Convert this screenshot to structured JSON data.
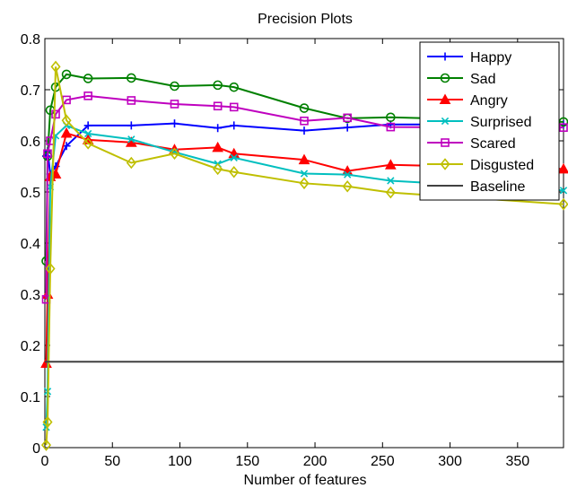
{
  "chart_data": {
    "type": "line",
    "title": "Precision Plots",
    "xlabel": "Number of features",
    "ylabel": "",
    "xlim": [
      0,
      384
    ],
    "ylim": [
      0,
      0.8
    ],
    "xticks": [
      0,
      50,
      100,
      150,
      200,
      250,
      300,
      350
    ],
    "yticks": [
      0,
      0.1,
      0.2,
      0.3,
      0.4,
      0.5,
      0.6,
      0.7,
      0.8
    ],
    "ytick_labels": [
      "0",
      "0.1",
      "0.2",
      "0.3",
      "0.4",
      "0.5",
      "0.6",
      "0.7",
      "0.8"
    ],
    "grid": false,
    "legend_position": "top-right",
    "x": [
      1,
      2,
      4,
      8,
      16,
      32,
      64,
      96,
      128,
      140,
      192,
      224,
      256,
      384
    ],
    "series": [
      {
        "name": "Happy",
        "color": "#0000ff",
        "marker": "plus",
        "values": [
          0.57,
          0.58,
          0.535,
          0.55,
          0.59,
          0.63,
          0.63,
          0.634,
          0.625,
          0.63,
          0.62,
          0.626,
          0.632,
          0.632
        ]
      },
      {
        "name": "Sad",
        "color": "#008000",
        "marker": "circle",
        "values": [
          0.365,
          0.57,
          0.66,
          0.705,
          0.73,
          0.722,
          0.723,
          0.707,
          0.709,
          0.705,
          0.664,
          0.644,
          0.646,
          0.637
        ]
      },
      {
        "name": "Angry",
        "color": "#ff0000",
        "marker": "triangle",
        "values": [
          0.165,
          0.3,
          0.53,
          0.535,
          0.615,
          0.602,
          0.597,
          0.583,
          0.587,
          0.575,
          0.563,
          0.541,
          0.553,
          0.545
        ]
      },
      {
        "name": "Surprised",
        "color": "#00bfbf",
        "marker": "x",
        "values": [
          0.04,
          0.11,
          0.51,
          0.61,
          0.63,
          0.614,
          0.603,
          0.578,
          0.555,
          0.567,
          0.536,
          0.534,
          0.522,
          0.503
        ]
      },
      {
        "name": "Scared",
        "color": "#bf00bf",
        "marker": "square",
        "values": [
          0.29,
          0.575,
          0.6,
          0.652,
          0.68,
          0.688,
          0.679,
          0.672,
          0.668,
          0.666,
          0.639,
          0.645,
          0.627,
          0.626
        ]
      },
      {
        "name": "Disgusted",
        "color": "#bfbf00",
        "marker": "diamond",
        "values": [
          0.005,
          0.05,
          0.35,
          0.745,
          0.64,
          0.595,
          0.557,
          0.575,
          0.545,
          0.539,
          0.517,
          0.511,
          0.499,
          0.476
        ]
      },
      {
        "name": "Baseline",
        "color": "#404040",
        "marker": "none",
        "constant": 0.168
      }
    ]
  }
}
